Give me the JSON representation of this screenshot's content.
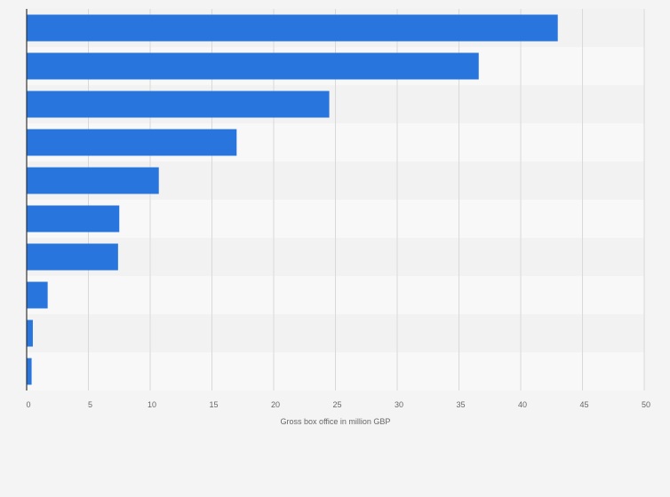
{
  "chart_data": {
    "type": "bar",
    "orientation": "horizontal",
    "title": "",
    "categories": [
      "",
      "",
      "",
      "",
      "",
      "",
      "",
      "",
      "",
      ""
    ],
    "values": [
      43.0,
      36.6,
      24.5,
      17.0,
      10.7,
      7.5,
      7.4,
      1.7,
      0.5,
      0.4
    ],
    "xlabel": "Gross box office in million GBP",
    "ylabel": "",
    "xlim": [
      0,
      50
    ],
    "xticks": [
      0,
      5,
      10,
      15,
      20,
      25,
      30,
      35,
      40,
      45,
      50
    ],
    "grid": true,
    "legend": "none",
    "colors": {
      "bar": "#2876dd",
      "background": "#f4f4f4",
      "band_dark": "#f2f2f2",
      "band_light": "#f8f8f8",
      "grid": "#d9d9d9",
      "axis": "#333333",
      "text": "#666666"
    }
  }
}
